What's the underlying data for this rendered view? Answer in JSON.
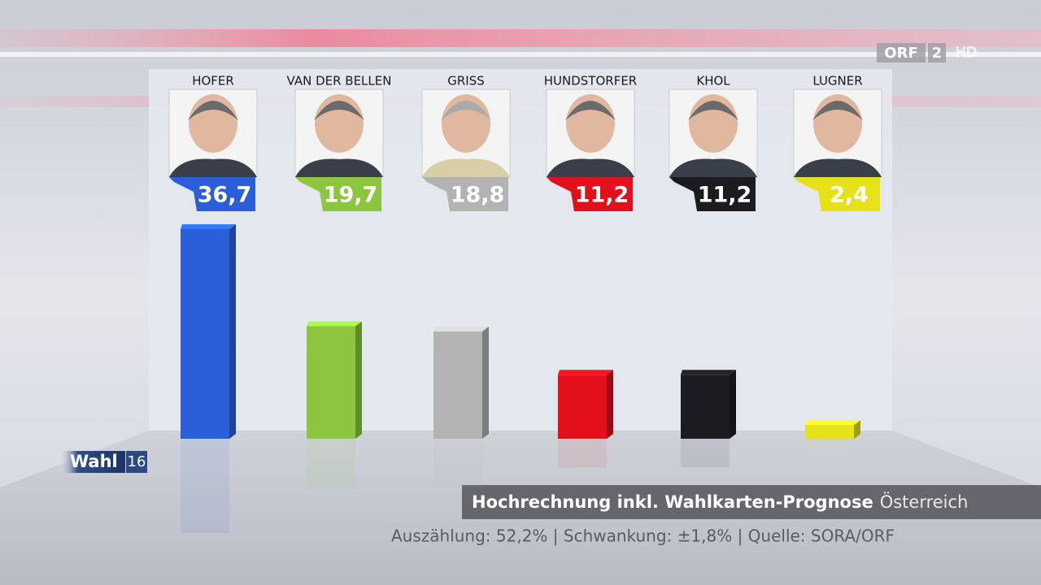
{
  "chart_data": {
    "type": "bar",
    "categories": [
      "HOFER",
      "VAN DER BELLEN",
      "GRISS",
      "HUNDSTORFER",
      "KHOL",
      "LUGNER"
    ],
    "values": [
      36.7,
      19.7,
      18.8,
      11.2,
      11.2,
      2.4
    ],
    "value_labels": [
      "36,7",
      "19,7",
      "18,8",
      "11,2",
      "11,2",
      "2,4"
    ],
    "colors": [
      "#2b5fd9",
      "#8cc63e",
      "#b3b3b3",
      "#e3101c",
      "#1c1c20",
      "#e6e21a"
    ],
    "title": "Hochrechnung inkl. Wahlkarten-Prognose",
    "subtitle": "Österreich",
    "note": "Auszählung: 52,2% | Schwankung: ±1,8% | Quelle: SORA/ORF"
  },
  "overlay": {
    "logo_word": "Wahl",
    "logo_year": "16",
    "channel": "ORF",
    "channel_number": "2",
    "hd": "HD"
  }
}
